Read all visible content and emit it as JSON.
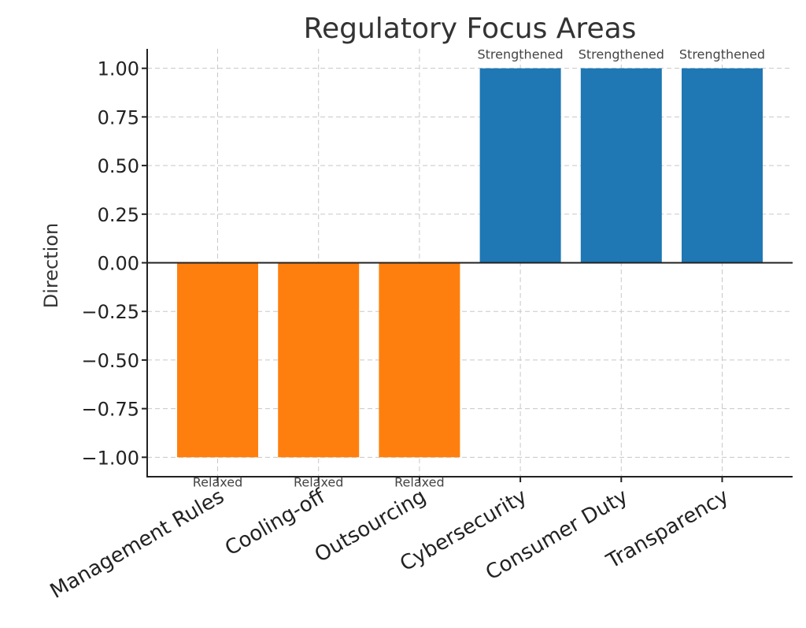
{
  "chart_data": {
    "type": "bar",
    "title": "Regulatory Focus Areas",
    "xlabel": "",
    "ylabel": "Direction",
    "categories": [
      "Management Rules",
      "Cooling-off",
      "Outsourcing",
      "Cybersecurity",
      "Consumer Duty",
      "Transparency"
    ],
    "values": [
      -1,
      -1,
      -1,
      1,
      1,
      1
    ],
    "data_labels": [
      "Relaxed",
      "Relaxed",
      "Relaxed",
      "Strengthened",
      "Strengthened",
      "Strengthened"
    ],
    "ylim": [
      -1.1,
      1.1
    ],
    "yticks": [
      -1.0,
      -0.75,
      -0.5,
      -0.25,
      0.0,
      0.25,
      0.5,
      0.75,
      1.0
    ],
    "ytick_labels": [
      "−1.00",
      "−0.75",
      "−0.50",
      "−0.25",
      "0.00",
      "0.25",
      "0.50",
      "0.75",
      "1.00"
    ],
    "grid": true,
    "colors": {
      "positive": "#1f77b4",
      "negative": "#ff7f0e"
    }
  }
}
